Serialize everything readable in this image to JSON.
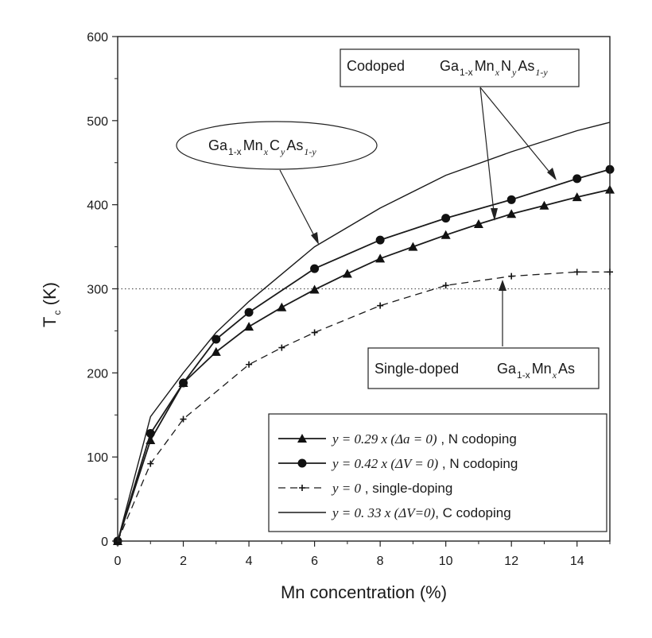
{
  "chart_data": {
    "type": "line",
    "xlabel": "Mn concentration (%)",
    "ylabel": {
      "main": "T",
      "sub": "c",
      "rest": " (K)"
    },
    "xlim": [
      0,
      15
    ],
    "ylim": [
      0,
      600
    ],
    "x_ticks": [
      0,
      2,
      4,
      6,
      8,
      10,
      12,
      14
    ],
    "y_ticks": [
      0,
      100,
      200,
      300,
      400,
      500,
      600
    ],
    "reference_line": {
      "y": 300,
      "style": "dotted"
    },
    "series": [
      {
        "name": "y = 0.29 x (Δa = 0) , N codoping",
        "name_parts": {
          "expr": "y = 0.29 x (Δa = 0)",
          "text": " , N codoping"
        },
        "marker": "triangle",
        "line": "solid",
        "x": [
          0,
          1,
          2,
          3,
          4,
          5,
          6,
          7,
          8,
          9,
          10,
          11,
          12,
          13,
          14,
          15
        ],
        "y": [
          0,
          120,
          188,
          225,
          255,
          278,
          299,
          318,
          336,
          350,
          364,
          377,
          389,
          399,
          409,
          418
        ]
      },
      {
        "name": "y = 0.42 x (ΔV = 0) , N codoping",
        "name_parts": {
          "expr": "y = 0.42 x (ΔV = 0)",
          "text": " , N codoping"
        },
        "marker": "circle",
        "line": "solid",
        "x": [
          0,
          1,
          2,
          3,
          4,
          6,
          8,
          10,
          12,
          14,
          15
        ],
        "y": [
          0,
          128,
          188,
          240,
          272,
          324,
          358,
          384,
          406,
          431,
          442
        ]
      },
      {
        "name": "y = 0 , single-doping",
        "name_parts": {
          "expr": "y = 0",
          "text": " ,  single-doping"
        },
        "marker": "plus",
        "line": "dashed",
        "x": [
          0,
          1,
          2,
          4,
          5,
          6,
          8,
          10,
          12,
          14,
          15
        ],
        "y": [
          0,
          92,
          145,
          210,
          230,
          248,
          280,
          304,
          315,
          320,
          320
        ]
      },
      {
        "name": "y = 0. 33 x (ΔV=0), C codoping",
        "name_parts": {
          "expr": "y = 0. 33 x (ΔV=0)",
          "text": ", C codoping"
        },
        "marker": "none",
        "line": "solid-thin",
        "x": [
          0,
          1,
          2,
          3,
          4,
          6,
          8,
          10,
          12,
          14,
          15
        ],
        "y": [
          0,
          148,
          200,
          248,
          285,
          350,
          396,
          435,
          463,
          488,
          498
        ]
      }
    ],
    "annotations": [
      {
        "id": "codoped",
        "label": "Codoped",
        "formula": [
          [
            "Ga",
            ""
          ],
          [
            "1-x",
            "sub"
          ],
          [
            "Mn",
            ""
          ],
          [
            "x",
            "subi"
          ],
          [
            "N",
            ""
          ],
          [
            "y",
            "subi"
          ],
          [
            "As",
            ""
          ],
          [
            "1-y",
            "subi"
          ]
        ]
      },
      {
        "id": "carbon",
        "label": "",
        "formula": [
          [
            "Ga",
            ""
          ],
          [
            "1-x",
            "sub"
          ],
          [
            "Mn",
            ""
          ],
          [
            "x",
            "subi"
          ],
          [
            "C",
            ""
          ],
          [
            "y",
            "subi"
          ],
          [
            "As",
            ""
          ],
          [
            "1-y",
            "subi"
          ]
        ]
      },
      {
        "id": "single",
        "label": "Single-doped",
        "formula": [
          [
            "Ga",
            ""
          ],
          [
            "1-x",
            "sub"
          ],
          [
            "Mn",
            ""
          ],
          [
            "x",
            "subi"
          ],
          [
            "As",
            ""
          ]
        ]
      }
    ]
  }
}
